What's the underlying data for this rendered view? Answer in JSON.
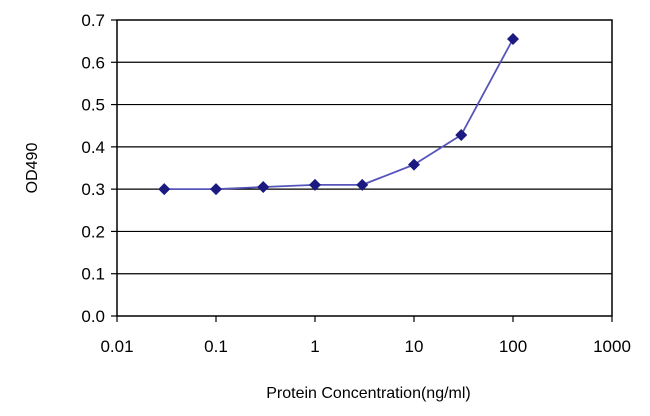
{
  "chart_data": {
    "type": "line",
    "xlabel": "Protein Concentration(ng/ml)",
    "ylabel": "OD490",
    "xscale": "log",
    "xlim": [
      0.01,
      1000
    ],
    "ylim": [
      0,
      0.7
    ],
    "xticks": [
      "0.01",
      "0.1",
      "1",
      "10",
      "100",
      "1000"
    ],
    "xtick_values": [
      0.01,
      0.1,
      1,
      10,
      100,
      1000
    ],
    "yticks": [
      "0.0",
      "0.1",
      "0.2",
      "0.3",
      "0.4",
      "0.5",
      "0.6",
      "0.7"
    ],
    "ytick_values": [
      0,
      0.1,
      0.2,
      0.3,
      0.4,
      0.5,
      0.6,
      0.7
    ],
    "grid": "horizontal",
    "legend": "none",
    "series": [
      {
        "x": [
          0.03,
          0.1,
          0.3,
          1,
          3,
          10,
          30,
          100
        ],
        "y": [
          0.3,
          0.3,
          0.305,
          0.31,
          0.31,
          0.358,
          0.428,
          0.655
        ]
      }
    ],
    "colors": {
      "line": "#5555bb",
      "marker": "#1a1a80",
      "grid": "#000000",
      "frame": "#000000"
    }
  }
}
